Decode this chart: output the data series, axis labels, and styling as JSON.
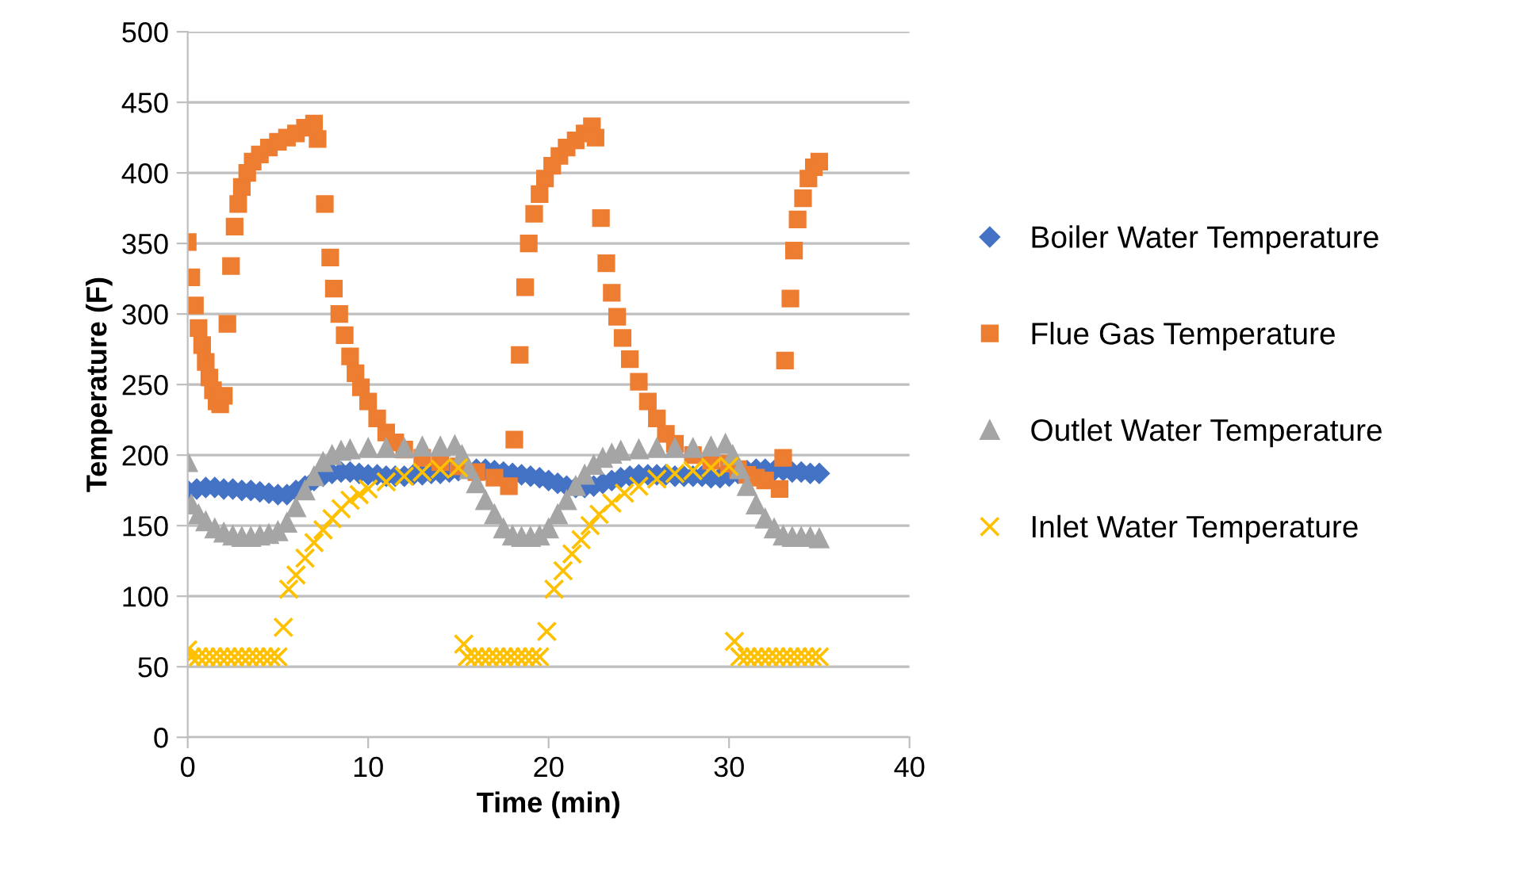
{
  "chart_data": {
    "type": "scatter",
    "xlabel": "Time (min)",
    "ylabel": "Temperature (F)",
    "xlim": [
      0,
      40
    ],
    "xticks": [
      0,
      10,
      20,
      30,
      40
    ],
    "ylim": [
      0,
      500
    ],
    "yticks": [
      0,
      50,
      100,
      150,
      200,
      250,
      300,
      350,
      400,
      450,
      500
    ],
    "grid": "y",
    "legend": "right",
    "series": [
      {
        "name": "Boiler Water Temperature",
        "color": "#4472c4",
        "marker": "diamond",
        "x": [
          0,
          0.5,
          1,
          1.5,
          2,
          2.5,
          3,
          3.5,
          4,
          4.5,
          5,
          5.5,
          6,
          6.5,
          7,
          7.5,
          8,
          8.5,
          9,
          9.5,
          10,
          10.5,
          11,
          11.5,
          12,
          12.5,
          13,
          13.5,
          14,
          14.5,
          15,
          15.5,
          16,
          16.5,
          17,
          17.5,
          18,
          18.5,
          19,
          19.5,
          20,
          20.5,
          21,
          21.5,
          22,
          22.5,
          23,
          23.5,
          24,
          24.5,
          25,
          25.5,
          26,
          26.5,
          27,
          27.5,
          28,
          28.5,
          29,
          29.5,
          30,
          30.5,
          31,
          31.5,
          32,
          32.5,
          33,
          33.5,
          34,
          34.5,
          35
        ],
        "values": [
          175,
          176,
          177,
          177,
          176,
          176,
          175,
          175,
          174,
          173,
          172,
          172,
          175,
          178,
          182,
          185,
          187,
          188,
          188,
          187,
          186,
          186,
          185,
          185,
          185,
          186,
          186,
          187,
          187,
          188,
          189,
          null,
          190,
          190,
          189,
          188,
          187,
          186,
          185,
          184,
          182,
          180,
          178,
          177,
          177,
          178,
          180,
          182,
          184,
          185,
          186,
          186,
          186,
          186,
          185,
          185,
          185,
          185,
          184,
          184,
          185,
          187,
          189,
          190,
          190,
          189,
          189,
          188,
          188,
          187,
          187
        ]
      },
      {
        "name": "Flue Gas Temperature",
        "color": "#ed7d31",
        "marker": "square",
        "x": [
          0,
          0.2,
          0.4,
          0.6,
          0.8,
          1.0,
          1.2,
          1.4,
          1.6,
          1.8,
          2.0,
          2.2,
          2.4,
          2.6,
          2.8,
          3.0,
          3.3,
          3.6,
          4.0,
          4.5,
          5.0,
          5.5,
          6.0,
          6.5,
          7.0,
          7.2,
          7.6,
          7.9,
          8.1,
          8.4,
          8.7,
          9.0,
          9.3,
          9.6,
          10.0,
          10.5,
          11.0,
          11.5,
          12.0,
          13.0,
          14.0,
          15.0,
          16.0,
          17.0,
          17.8,
          18.1,
          18.4,
          18.7,
          18.9,
          19.2,
          19.5,
          19.8,
          20.2,
          20.6,
          21.0,
          21.5,
          22.0,
          22.4,
          22.6,
          22.9,
          23.2,
          23.5,
          23.8,
          24.1,
          24.5,
          25.0,
          25.5,
          26.0,
          26.5,
          27.0,
          28.0,
          29.0,
          30.0,
          30.5,
          31.0,
          31.5,
          32.0,
          32.8,
          33.0,
          33.1,
          33.4,
          33.6,
          33.8,
          34.1,
          34.4,
          34.7,
          35.0
        ],
        "values": [
          351,
          326,
          306,
          290,
          278,
          266,
          255,
          246,
          238,
          236,
          242,
          293,
          334,
          362,
          378,
          390,
          400,
          408,
          413,
          418,
          422,
          425,
          428,
          432,
          435,
          424,
          378,
          340,
          318,
          300,
          285,
          270,
          258,
          248,
          238,
          226,
          216,
          209,
          204,
          198,
          195,
          192,
          188,
          184,
          178,
          211,
          271,
          319,
          350,
          371,
          385,
          396,
          405,
          412,
          418,
          423,
          428,
          433,
          425,
          368,
          336,
          315,
          298,
          283,
          268,
          252,
          238,
          226,
          215,
          208,
          200,
          196,
          194,
          190,
          186,
          184,
          182,
          176,
          198,
          267,
          311,
          345,
          367,
          382,
          396,
          404,
          408
        ]
      },
      {
        "name": "Outlet Water Temperature",
        "color": "#a5a5a5",
        "marker": "triangle",
        "x": [
          0,
          0.2,
          0.6,
          1.0,
          1.5,
          2.0,
          2.5,
          3.0,
          3.5,
          4.0,
          4.5,
          5.0,
          5.5,
          6.0,
          6.5,
          7.0,
          7.5,
          8.0,
          8.5,
          9.0,
          10,
          11,
          12,
          13,
          14,
          14.8,
          15.2,
          15.6,
          16.0,
          16.5,
          17.0,
          17.5,
          18.0,
          18.5,
          19.0,
          19.5,
          20.0,
          20.5,
          21.0,
          21.5,
          22.0,
          22.5,
          23.0,
          23.5,
          24.0,
          25,
          26,
          27,
          28,
          29,
          29.8,
          30.2,
          30.6,
          31.0,
          31.5,
          32.0,
          32.5,
          33.0,
          33.5,
          34.0,
          34.5,
          35
        ],
        "values": [
          195,
          165,
          158,
          153,
          148,
          145,
          143,
          142,
          142,
          143,
          144,
          146,
          152,
          163,
          175,
          185,
          195,
          200,
          203,
          204,
          205,
          205,
          205,
          206,
          206,
          207,
          200,
          190,
          180,
          168,
          158,
          148,
          143,
          142,
          142,
          143,
          148,
          158,
          168,
          178,
          186,
          193,
          198,
          201,
          203,
          204,
          205,
          205,
          205,
          206,
          208,
          200,
          190,
          178,
          165,
          155,
          148,
          143,
          142,
          142,
          142,
          141
        ]
      },
      {
        "name": "Inlet Water Temperature",
        "color": "#ffc000",
        "marker": "cross",
        "x": [
          0,
          0.2,
          0.6,
          1.0,
          1.4,
          1.8,
          2.2,
          2.6,
          3.0,
          3.4,
          3.8,
          4.2,
          4.6,
          5.0,
          5.3,
          5.6,
          6.0,
          6.5,
          7,
          7.5,
          8,
          8.5,
          9,
          9.5,
          10,
          11,
          12,
          13,
          14,
          15,
          15.3,
          15.5,
          15.9,
          16.3,
          16.7,
          17.1,
          17.5,
          17.9,
          18.3,
          18.7,
          19.1,
          19.5,
          19.9,
          20.3,
          20.8,
          21.3,
          21.8,
          22.3,
          22.8,
          23.5,
          24.2,
          25,
          26,
          27,
          28,
          29,
          30,
          30.3,
          30.6,
          31.0,
          31.4,
          31.8,
          32.2,
          32.6,
          33.0,
          33.4,
          33.8,
          34.2,
          34.6,
          35.0
        ],
        "values": [
          62,
          57,
          57,
          57,
          57,
          57,
          57,
          57,
          57,
          57,
          57,
          57,
          57,
          57,
          78,
          105,
          115,
          127,
          138,
          147,
          155,
          162,
          168,
          172,
          176,
          181,
          185,
          188,
          190,
          191,
          66,
          57,
          57,
          57,
          57,
          57,
          57,
          57,
          57,
          57,
          57,
          57,
          75,
          105,
          118,
          130,
          140,
          150,
          158,
          166,
          173,
          178,
          183,
          187,
          189,
          191,
          192,
          68,
          57,
          57,
          57,
          57,
          57,
          57,
          57,
          57,
          57,
          57,
          57,
          57
        ]
      }
    ]
  }
}
